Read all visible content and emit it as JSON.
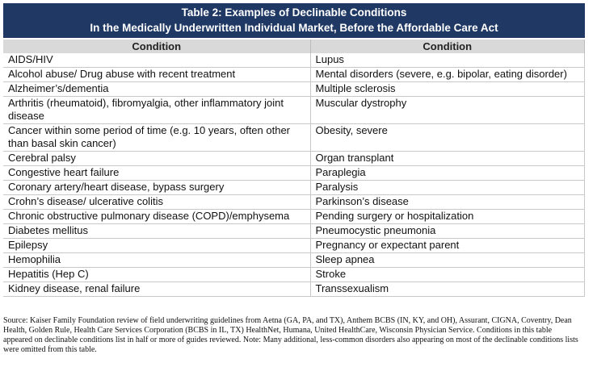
{
  "header": {
    "title": [
      "Table 2: Examples of Declinable Conditions",
      "In the Medically Underwritten Individual Market, Before the Affordable Care Act"
    ]
  },
  "table": {
    "columns": [
      "Condition",
      "Condition"
    ],
    "rows": [
      [
        "AIDS/HIV",
        "Lupus"
      ],
      [
        "Alcohol abuse/ Drug abuse with recent treatment",
        "Mental disorders (severe, e.g. bipolar, eating disorder)"
      ],
      [
        "Alzheimer’s/dementia",
        "Multiple sclerosis"
      ],
      [
        "Arthritis (rheumatoid), fibromyalgia, other inflammatory joint disease",
        "Muscular dystrophy"
      ],
      [
        "Cancer within some period of time (e.g. 10 years, often other than basal skin cancer)",
        "Obesity, severe"
      ],
      [
        "Cerebral palsy",
        "Organ transplant"
      ],
      [
        "Congestive heart failure",
        "Paraplegia"
      ],
      [
        "Coronary artery/heart disease, bypass surgery",
        "Paralysis"
      ],
      [
        "Crohn’s disease/ ulcerative colitis",
        "Parkinson’s disease"
      ],
      [
        "Chronic obstructive pulmonary disease (COPD)/emphysema",
        "Pending surgery or hospitalization"
      ],
      [
        "Diabetes mellitus",
        "Pneumocystic pneumonia"
      ],
      [
        "Epilepsy",
        "Pregnancy or expectant parent"
      ],
      [
        "Hemophilia",
        "Sleep apnea"
      ],
      [
        "Hepatitis (Hep C)",
        "Stroke"
      ],
      [
        "Kidney disease, renal failure",
        "Transsexualism"
      ]
    ]
  },
  "source": "Source: Kaiser Family Foundation review of field underwriting guidelines from Aetna (GA, PA, and TX), Anthem BCBS (IN, KY, and OH), Assurant, CIGNA, Coventry, Dean Health, Golden Rule, Health Care Services Corporation (BCBS in IL, TX) HealthNet, Humana, United HealthCare, Wisconsin Physician Service.  Conditions in this table appeared on declinable conditions list in half or more of guides reviewed.  Note: Many additional, less-common disorders also appearing on most of the declinable conditions lists were omitted from this table."
}
